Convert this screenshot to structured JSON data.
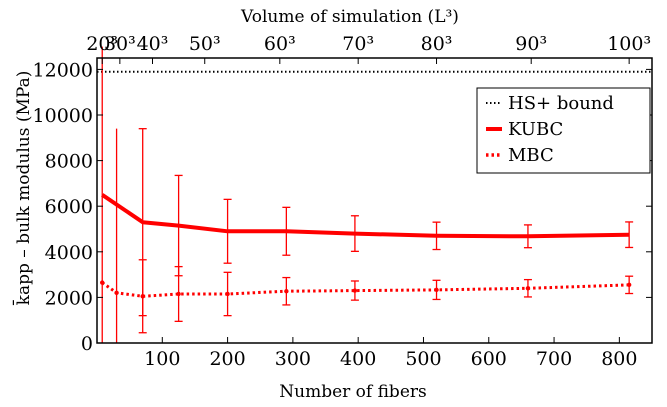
{
  "chart_data": {
    "type": "line",
    "title": "",
    "top_axis_title": "Volume of simulation (L³)",
    "xlabel": "Number of fibers",
    "ylabel": "k̄app – bulk modulus (MPa)",
    "xlim": [
      0,
      850
    ],
    "ylim": [
      0,
      12500
    ],
    "x_ticks": [
      100,
      200,
      300,
      400,
      500,
      600,
      700,
      800
    ],
    "y_ticks": [
      0,
      2000,
      4000,
      6000,
      8000,
      10000,
      12000
    ],
    "top_ticks": [
      {
        "label": "20³",
        "x": 8
      },
      {
        "label": "30³",
        "x": 35
      },
      {
        "label": "40³",
        "x": 85
      },
      {
        "label": "50³",
        "x": 165
      },
      {
        "label": "60³",
        "x": 280
      },
      {
        "label": "70³",
        "x": 400
      },
      {
        "label": "80³",
        "x": 520
      },
      {
        "label": "90³",
        "x": 665
      },
      {
        "label": "100³",
        "x": 815
      }
    ],
    "grid": false,
    "legend_position": "top-right",
    "series": [
      {
        "name": "HS+ bound",
        "style": "dashdot",
        "color": "#000000",
        "x": [
          0,
          850
        ],
        "y": [
          11900,
          11900
        ]
      },
      {
        "name": "KUBC",
        "style": "solid-thick",
        "color": "#ff0000",
        "x": [
          8,
          70,
          125,
          200,
          290,
          395,
          520,
          660,
          815
        ],
        "y": [
          6500,
          5300,
          5150,
          4900,
          4900,
          4800,
          4700,
          4680,
          4750
        ],
        "err": [
          6500,
          4100,
          2200,
          1400,
          1050,
          780,
          600,
          500,
          560
        ],
        "err_caps": [
          false,
          true,
          true,
          true,
          true,
          true,
          true,
          true,
          true
        ]
      },
      {
        "name": "MBC",
        "style": "dotted",
        "color": "#ff0000",
        "x": [
          8,
          30,
          70,
          125,
          200,
          290,
          395,
          520,
          660,
          815
        ],
        "y": [
          2650,
          2200,
          2050,
          2150,
          2150,
          2270,
          2300,
          2330,
          2400,
          2550
        ],
        "err": [
          0,
          7200,
          1600,
          1200,
          950,
          600,
          420,
          420,
          380,
          380
        ],
        "err_caps": [
          false,
          false,
          true,
          true,
          true,
          true,
          true,
          true,
          true,
          true
        ]
      }
    ]
  }
}
